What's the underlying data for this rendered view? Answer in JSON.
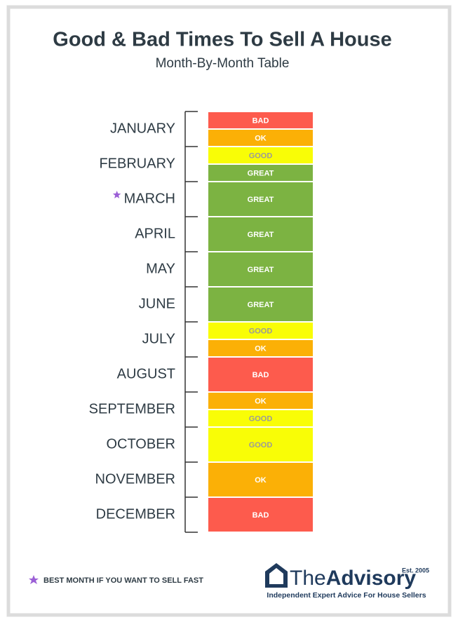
{
  "header": {
    "title": "Good & Bad Times To Sell A House",
    "subtitle": "Month-By-Month Table"
  },
  "months": [
    {
      "label": "JANUARY",
      "segments": [
        {
          "text": "BAD",
          "color": "#fd5b4d"
        },
        {
          "text": "OK",
          "color": "#fbb006"
        }
      ]
    },
    {
      "label": "FEBRUARY",
      "segments": [
        {
          "text": "GOOD",
          "color": "#f9fd06"
        },
        {
          "text": "GREAT",
          "color": "#7cb342"
        }
      ]
    },
    {
      "label": "MARCH",
      "best": true,
      "segments": [
        {
          "text": "GREAT",
          "color": "#7cb342"
        }
      ]
    },
    {
      "label": "APRIL",
      "segments": [
        {
          "text": "GREAT",
          "color": "#7cb342"
        }
      ]
    },
    {
      "label": "MAY",
      "segments": [
        {
          "text": "GREAT",
          "color": "#7cb342"
        }
      ]
    },
    {
      "label": "JUNE",
      "segments": [
        {
          "text": "GREAT",
          "color": "#7cb342"
        }
      ]
    },
    {
      "label": "JULY",
      "segments": [
        {
          "text": "GOOD",
          "color": "#f9fd06"
        },
        {
          "text": "OK",
          "color": "#fbb006"
        }
      ]
    },
    {
      "label": "AUGUST",
      "segments": [
        {
          "text": "BAD",
          "color": "#fd5b4d"
        }
      ]
    },
    {
      "label": "SEPTEMBER",
      "segments": [
        {
          "text": "OK",
          "color": "#fbb006"
        },
        {
          "text": "GOOD",
          "color": "#f9fd06"
        }
      ]
    },
    {
      "label": "OCTOBER",
      "segments": [
        {
          "text": "GOOD",
          "color": "#f9fd06"
        }
      ]
    },
    {
      "label": "NOVEMBER",
      "segments": [
        {
          "text": "OK",
          "color": "#fbb006"
        }
      ]
    },
    {
      "label": "DECEMBER",
      "segments": [
        {
          "text": "BAD",
          "color": "#fd5b4d"
        }
      ]
    }
  ],
  "footer": {
    "note": "BEST MONTH IF YOU WANT TO SELL FAST",
    "brand_light": "The",
    "brand_bold": "Advisory",
    "established": "Est. 2005",
    "tagline": "Independent Expert Advice For House Sellers"
  }
}
